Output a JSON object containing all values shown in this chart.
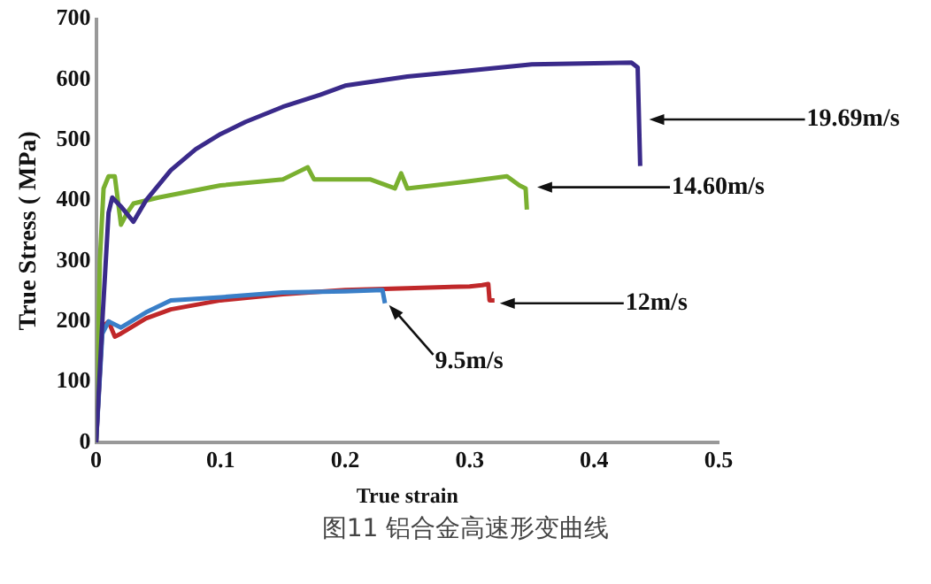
{
  "chart_data": {
    "type": "line",
    "xlabel": "True strain",
    "ylabel": "True Stress ( MPa)",
    "xlim": [
      0,
      0.5
    ],
    "xticks": [
      0,
      0.1,
      0.2,
      0.3,
      0.4,
      0.5
    ],
    "ylim": [
      0,
      700
    ],
    "yticks": [
      0,
      100,
      200,
      300,
      400,
      500,
      600,
      700
    ],
    "grid": false,
    "legend": false,
    "marker": "none",
    "line_style": "solid",
    "series": [
      {
        "color": "#3a2a8a",
        "x": [
          0,
          0.005,
          0.01,
          0.013,
          0.02,
          0.03,
          0.04,
          0.06,
          0.08,
          0.1,
          0.12,
          0.15,
          0.18,
          0.2,
          0.25,
          0.3,
          0.35,
          0.4,
          0.43,
          0.435,
          0.437
        ],
        "values": [
          0,
          200,
          380,
          405,
          390,
          365,
          400,
          450,
          485,
          510,
          530,
          555,
          575,
          590,
          605,
          615,
          625,
          627,
          628,
          620,
          457
        ]
      },
      {
        "color": "#7ab030",
        "x": [
          0,
          0.003,
          0.006,
          0.01,
          0.015,
          0.02,
          0.025,
          0.03,
          0.05,
          0.1,
          0.15,
          0.16,
          0.17,
          0.175,
          0.22,
          0.24,
          0.245,
          0.25,
          0.3,
          0.33,
          0.34,
          0.345,
          0.346
        ],
        "values": [
          0,
          300,
          420,
          440,
          440,
          360,
          380,
          395,
          405,
          425,
          435,
          445,
          455,
          435,
          435,
          420,
          445,
          420,
          432,
          440,
          425,
          420,
          385
        ]
      },
      {
        "color": "#3a7fc8",
        "x": [
          0,
          0.005,
          0.01,
          0.02,
          0.04,
          0.06,
          0.1,
          0.15,
          0.2,
          0.23,
          0.232
        ],
        "values": [
          0,
          180,
          200,
          190,
          215,
          235,
          240,
          248,
          250,
          252,
          230
        ]
      },
      {
        "color": "#c0282a",
        "x": [
          0,
          0.005,
          0.01,
          0.015,
          0.02,
          0.04,
          0.06,
          0.1,
          0.15,
          0.2,
          0.25,
          0.3,
          0.31,
          0.315,
          0.316,
          0.32
        ],
        "values": [
          0,
          190,
          200,
          175,
          180,
          205,
          220,
          235,
          245,
          252,
          255,
          258,
          260,
          262,
          235,
          235
        ]
      }
    ],
    "annotations": [
      {
        "text": "19.69m/s",
        "x": 0.44,
        "y": 534
      },
      {
        "text": "14.60m/s",
        "x": 0.35,
        "y": 422
      },
      {
        "text": "12m/s",
        "x": 0.32,
        "y": 230
      },
      {
        "text": "9.5m/s",
        "x": 0.231,
        "y": 227
      },
      "图11 铝合金高速形变曲线"
    ]
  }
}
